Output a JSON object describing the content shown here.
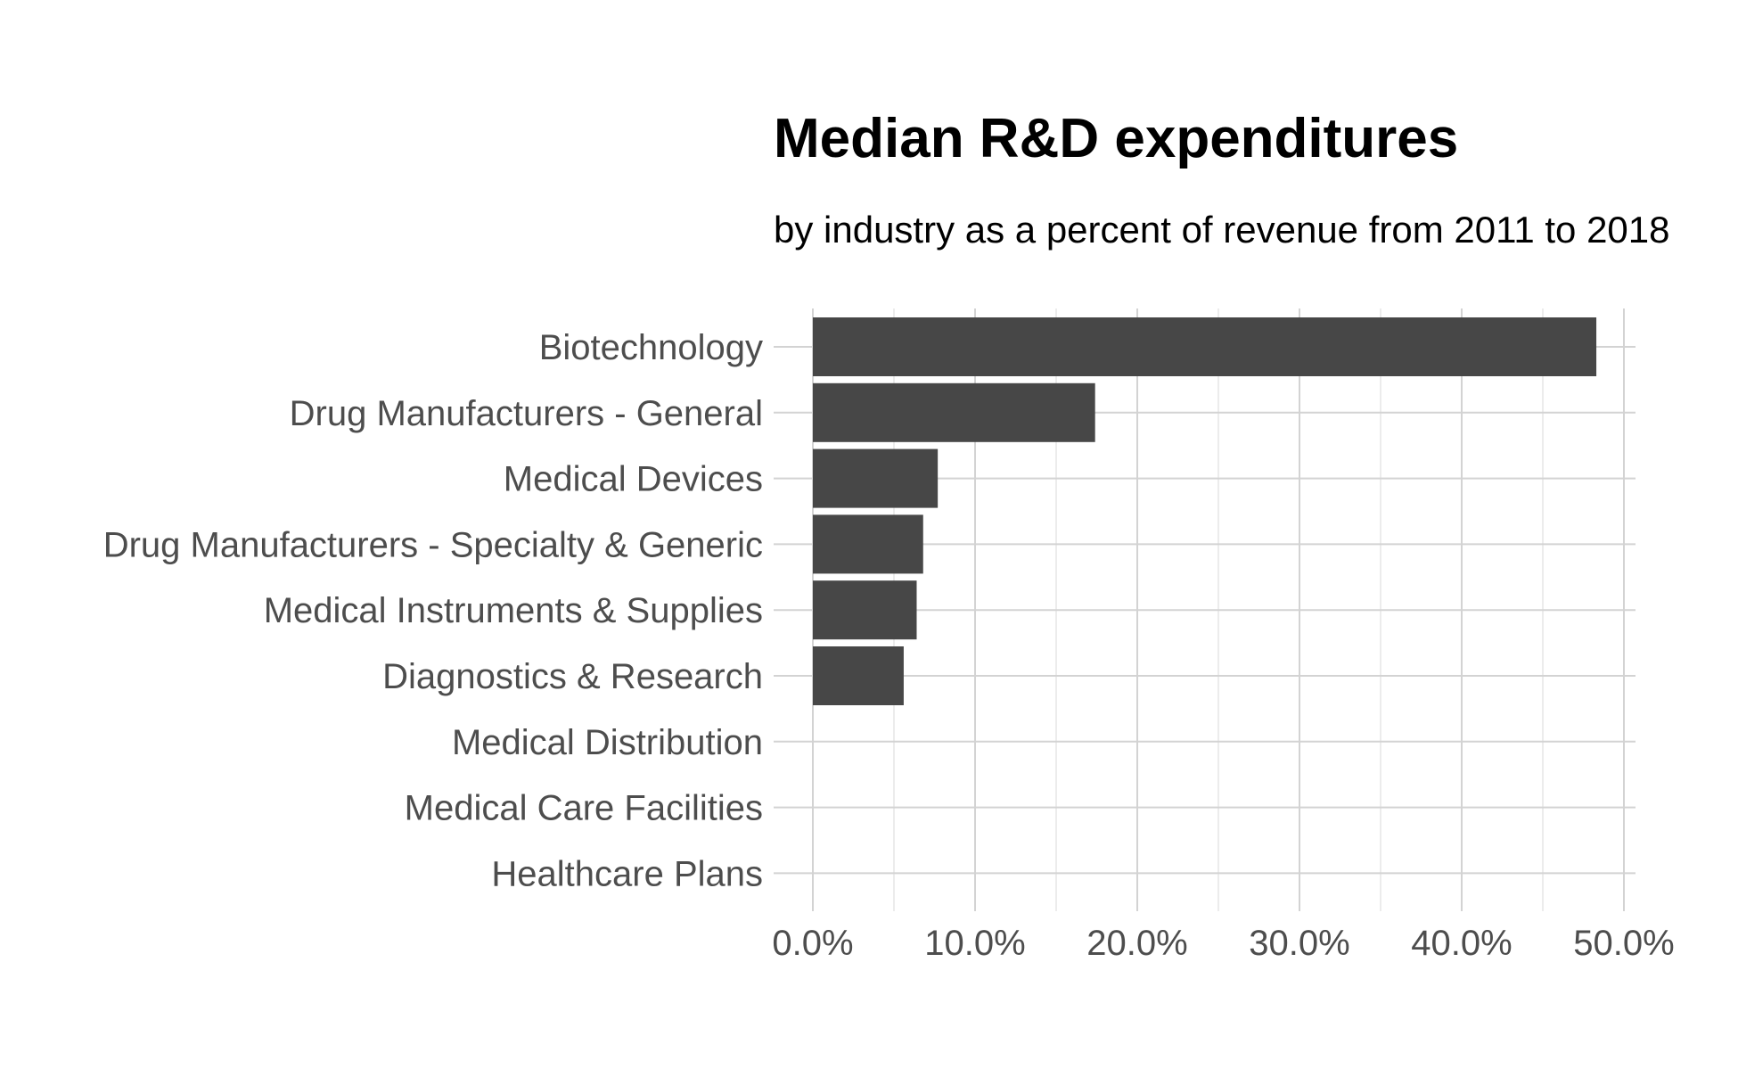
{
  "chart_data": {
    "type": "bar",
    "orientation": "horizontal",
    "title": "Median R&D expenditures",
    "subtitle": "by industry as a percent of revenue from 2011 to 2018",
    "xlabel": "",
    "ylabel": "",
    "categories": [
      "Biotechnology",
      "Drug Manufacturers - General",
      "Medical Devices",
      "Drug Manufacturers - Specialty & Generic",
      "Medical Instruments & Supplies",
      "Diagnostics & Research",
      "Medical Distribution",
      "Medical Care Facilities",
      "Healthcare Plans"
    ],
    "values": [
      48.3,
      17.4,
      7.7,
      6.8,
      6.4,
      5.6,
      0.0,
      0.0,
      0.0
    ],
    "xlim": [
      0,
      50
    ],
    "x_ticks": [
      0,
      10,
      20,
      30,
      40,
      50
    ],
    "x_tick_labels": [
      "0.0%",
      "10.0%",
      "20.0%",
      "30.0%",
      "40.0%",
      "50.0%"
    ],
    "grid": true,
    "legend": "none",
    "bar_color": "#474747"
  }
}
